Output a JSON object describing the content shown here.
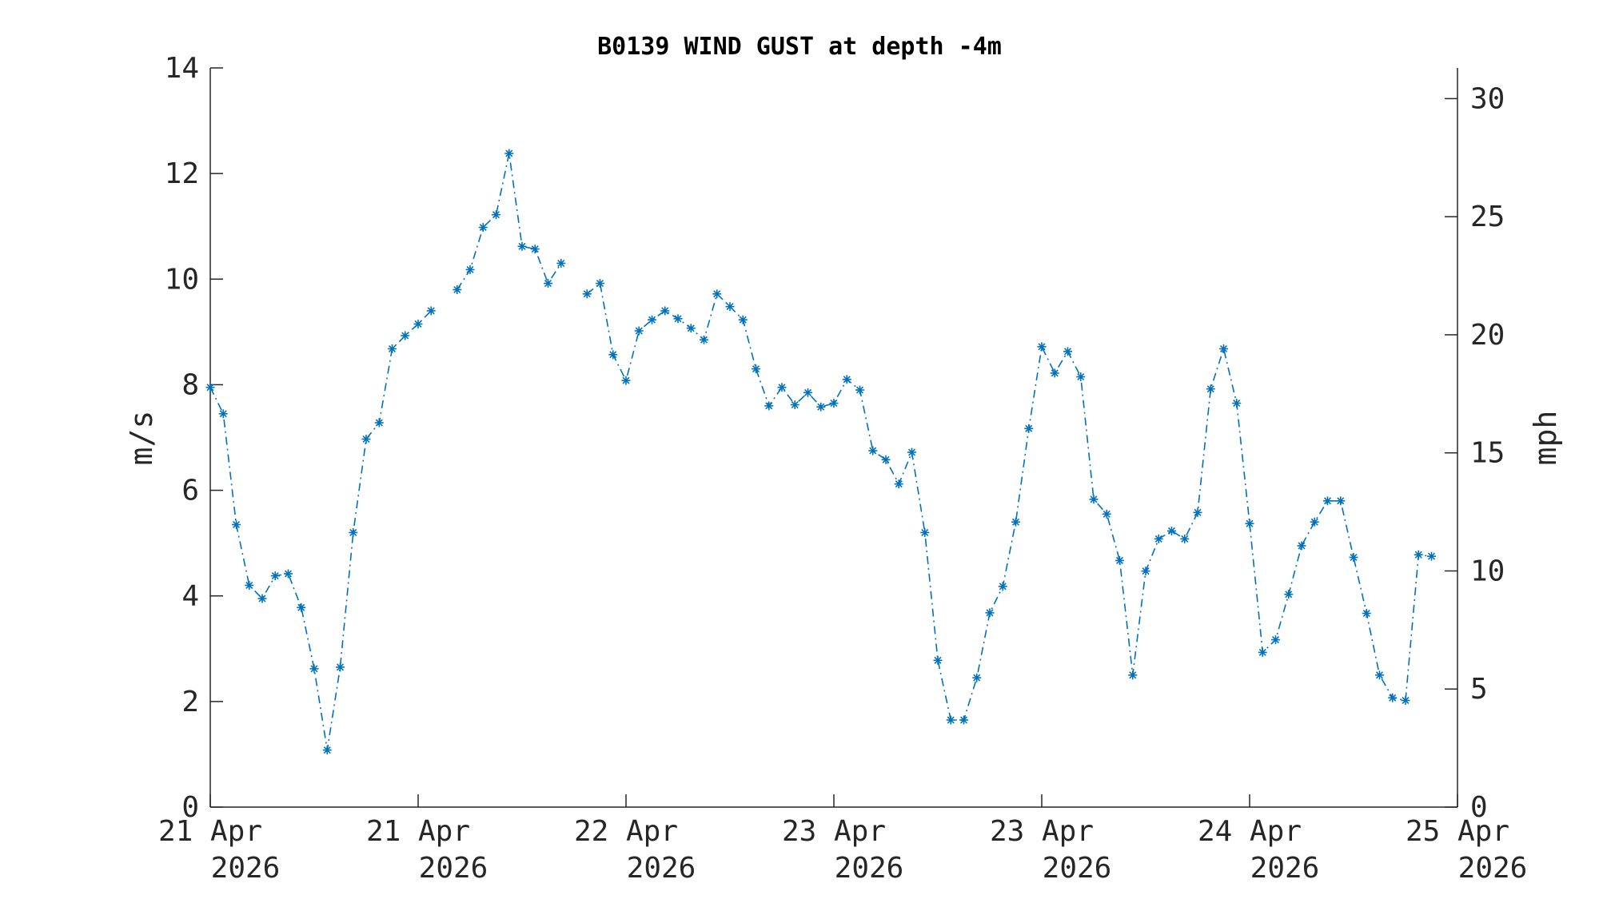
{
  "chart_data": {
    "type": "line",
    "title": "B0139 WIND GUST at depth -4m",
    "ylabel": "m/s",
    "y2label": "mph",
    "ylim": [
      0,
      14
    ],
    "y2lim": [
      0,
      31.3
    ],
    "yticks": [
      0,
      2,
      4,
      6,
      8,
      10,
      12,
      14
    ],
    "y2ticks": [
      0,
      5,
      10,
      15,
      20,
      25,
      30
    ],
    "xlim": [
      0,
      96
    ],
    "xticks": [
      {
        "x": 0,
        "line1": "21 Apr",
        "line2": "2026"
      },
      {
        "x": 16,
        "line1": "21 Apr",
        "line2": "2026"
      },
      {
        "x": 32,
        "line1": "22 Apr",
        "line2": "2026"
      },
      {
        "x": 48,
        "line1": "23 Apr",
        "line2": "2026"
      },
      {
        "x": 64,
        "line1": "23 Apr",
        "line2": "2026"
      },
      {
        "x": 80,
        "line1": "24 Apr",
        "line2": "2026"
      },
      {
        "x": 96,
        "line1": "25 Apr",
        "line2": "2026"
      }
    ],
    "grid": false,
    "series": [
      {
        "line_style": "dash-dot",
        "marker": "asterisk",
        "color": "#0072BD",
        "points": [
          [
            0,
            7.95
          ],
          [
            1,
            7.45
          ],
          [
            2,
            5.35
          ],
          [
            3,
            4.2
          ],
          [
            4,
            3.95
          ],
          [
            5,
            4.38
          ],
          [
            6,
            4.42
          ],
          [
            7,
            3.78
          ],
          [
            8,
            2.62
          ],
          [
            9,
            1.08
          ],
          [
            10,
            2.65
          ],
          [
            11,
            5.2
          ],
          [
            12,
            6.97
          ],
          [
            13,
            7.28
          ],
          [
            14,
            8.68
          ],
          [
            15,
            8.93
          ],
          [
            16,
            9.15
          ],
          [
            17,
            9.4
          ],
          [
            19,
            9.8
          ],
          [
            20,
            10.18
          ],
          [
            21,
            10.98
          ],
          [
            22,
            11.22
          ],
          [
            23,
            12.38
          ],
          [
            24,
            10.62
          ],
          [
            25,
            10.57
          ],
          [
            26,
            9.92
          ],
          [
            27,
            10.3
          ],
          [
            29,
            9.72
          ],
          [
            30,
            9.92
          ],
          [
            31,
            8.57
          ],
          [
            32,
            8.08
          ],
          [
            33,
            9.02
          ],
          [
            34,
            9.23
          ],
          [
            35,
            9.4
          ],
          [
            36,
            9.25
          ],
          [
            37,
            9.07
          ],
          [
            38,
            8.85
          ],
          [
            39,
            9.72
          ],
          [
            40,
            9.48
          ],
          [
            41,
            9.23
          ],
          [
            42,
            8.3
          ],
          [
            43,
            7.6
          ],
          [
            44,
            7.95
          ],
          [
            45,
            7.62
          ],
          [
            46,
            7.85
          ],
          [
            47,
            7.58
          ],
          [
            48,
            7.65
          ],
          [
            49,
            8.1
          ],
          [
            50,
            7.9
          ],
          [
            51,
            6.75
          ],
          [
            52,
            6.58
          ],
          [
            53,
            6.12
          ],
          [
            54,
            6.72
          ],
          [
            55,
            5.2
          ],
          [
            56,
            2.78
          ],
          [
            57,
            1.65
          ],
          [
            58,
            1.65
          ],
          [
            59,
            2.45
          ],
          [
            60,
            3.68
          ],
          [
            61,
            4.18
          ],
          [
            62,
            5.4
          ],
          [
            63,
            7.17
          ],
          [
            64,
            8.72
          ],
          [
            65,
            8.22
          ],
          [
            66,
            8.63
          ],
          [
            67,
            8.15
          ],
          [
            68,
            5.83
          ],
          [
            69,
            5.55
          ],
          [
            70,
            4.67
          ],
          [
            71,
            2.5
          ],
          [
            72,
            4.47
          ],
          [
            73,
            5.08
          ],
          [
            74,
            5.23
          ],
          [
            75,
            5.08
          ],
          [
            76,
            5.58
          ],
          [
            77,
            7.92
          ],
          [
            78,
            8.68
          ],
          [
            79,
            7.65
          ],
          [
            80,
            5.37
          ],
          [
            81,
            2.93
          ],
          [
            82,
            3.17
          ],
          [
            83,
            4.03
          ],
          [
            84,
            4.95
          ],
          [
            85,
            5.4
          ],
          [
            86,
            5.8
          ],
          [
            87,
            5.8
          ],
          [
            88,
            4.73
          ],
          [
            89,
            3.67
          ],
          [
            90,
            2.5
          ],
          [
            91,
            2.07
          ],
          [
            92,
            2.02
          ],
          [
            93,
            4.78
          ],
          [
            94,
            4.75
          ]
        ]
      }
    ]
  }
}
